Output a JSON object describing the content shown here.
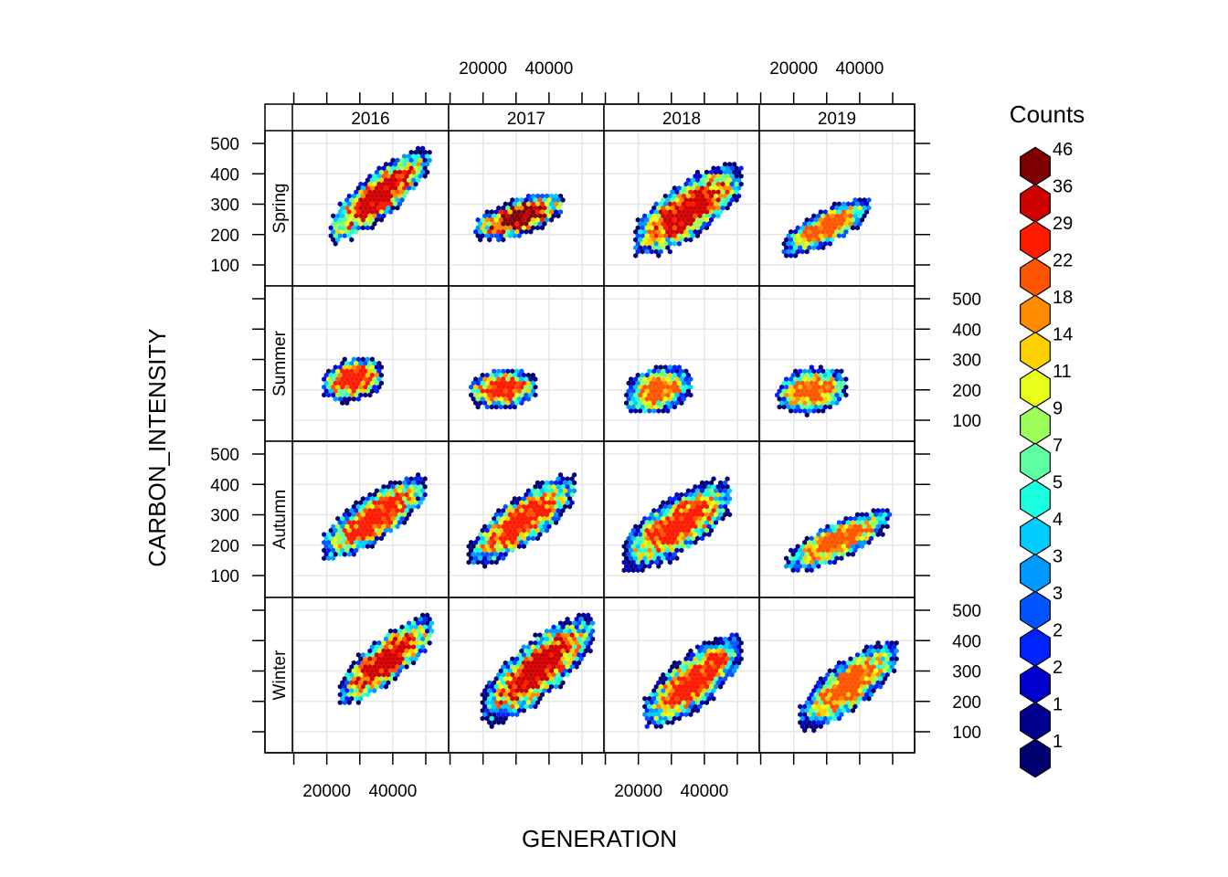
{
  "chart_data": {
    "type": "hexbin",
    "xlabel": "GENERATION",
    "ylabel": "CARBON_INTENSITY",
    "columns": [
      "2016",
      "2017",
      "2018",
      "2019"
    ],
    "rows": [
      "Spring",
      "Summer",
      "Autumn",
      "Winter"
    ],
    "xlim": [
      14000,
      56000
    ],
    "ylim": [
      20,
      520
    ],
    "x_ticks": [
      20000,
      40000
    ],
    "y_ticks": [
      100,
      200,
      300,
      400,
      500
    ],
    "legend": {
      "title": "Counts",
      "position": "right",
      "labels": [
        "46",
        "36",
        "29",
        "22",
        "18",
        "14",
        "11",
        "9",
        "7",
        "5",
        "4",
        "3",
        "3",
        "2",
        "2",
        "1",
        "1"
      ],
      "colors": [
        "#7F0000",
        "#CF0000",
        "#FF1A00",
        "#FF5500",
        "#FF8C00",
        "#FFD000",
        "#E8FF1A",
        "#9CFF5A",
        "#5EFFA0",
        "#1AFFE0",
        "#00CCFF",
        "#0099FF",
        "#0055FF",
        "#0022FF",
        "#0000CC",
        "#00008F",
        "#000070"
      ]
    },
    "panels": [
      {
        "column": "2016",
        "row": "Spring",
        "gen_range": [
          21000,
          51000
        ],
        "ci_at_min": 210,
        "ci_at_max": 450,
        "ci_spread": 85,
        "peak_count": 36,
        "max_ci": 480
      },
      {
        "column": "2017",
        "row": "Spring",
        "gen_range": [
          18000,
          44000
        ],
        "ci_at_min": 215,
        "ci_at_max": 300,
        "ci_spread": 60,
        "peak_count": 46,
        "max_ci": 350
      },
      {
        "column": "2018",
        "row": "Spring",
        "gen_range": [
          19000,
          51000
        ],
        "ci_at_min": 180,
        "ci_at_max": 380,
        "ci_spread": 100,
        "peak_count": 36,
        "max_ci": 440
      },
      {
        "column": "2019",
        "row": "Spring",
        "gen_range": [
          17000,
          43000
        ],
        "ci_at_min": 160,
        "ci_at_max": 290,
        "ci_spread": 60,
        "peak_count": 22,
        "max_ci": 330
      },
      {
        "column": "2016",
        "row": "Summer",
        "gen_range": [
          19000,
          37000
        ],
        "ci_at_min": 220,
        "ci_at_max": 250,
        "ci_spread": 70,
        "peak_count": 29,
        "max_ci": 370
      },
      {
        "column": "2017",
        "row": "Summer",
        "gen_range": [
          16000,
          36000
        ],
        "ci_at_min": 195,
        "ci_at_max": 210,
        "ci_spread": 65,
        "peak_count": 29,
        "max_ci": 320
      },
      {
        "column": "2018",
        "row": "Summer",
        "gen_range": [
          16000,
          36000
        ],
        "ci_at_min": 180,
        "ci_at_max": 220,
        "ci_spread": 75,
        "peak_count": 22,
        "max_ci": 320
      },
      {
        "column": "2019",
        "row": "Summer",
        "gen_range": [
          15000,
          36000
        ],
        "ci_at_min": 185,
        "ci_at_max": 210,
        "ci_spread": 75,
        "peak_count": 22,
        "max_ci": 320
      },
      {
        "column": "2016",
        "row": "Autumn",
        "gen_range": [
          19000,
          50000
        ],
        "ci_at_min": 190,
        "ci_at_max": 390,
        "ci_spread": 85,
        "peak_count": 29,
        "max_ci": 440
      },
      {
        "column": "2017",
        "row": "Autumn",
        "gen_range": [
          16000,
          48000
        ],
        "ci_at_min": 170,
        "ci_at_max": 390,
        "ci_spread": 90,
        "peak_count": 29,
        "max_ci": 430
      },
      {
        "column": "2018",
        "row": "Autumn",
        "gen_range": [
          16000,
          48000
        ],
        "ci_at_min": 170,
        "ci_at_max": 360,
        "ci_spread": 100,
        "peak_count": 29,
        "max_ci": 430
      },
      {
        "column": "2019",
        "row": "Autumn",
        "gen_range": [
          18000,
          49000
        ],
        "ci_at_min": 140,
        "ci_at_max": 290,
        "ci_spread": 65,
        "peak_count": 22,
        "max_ci": 350
      },
      {
        "column": "2016",
        "row": "Winter",
        "gen_range": [
          24000,
          52000
        ],
        "ci_at_min": 230,
        "ci_at_max": 440,
        "ci_spread": 85,
        "peak_count": 36,
        "max_ci": 510
      },
      {
        "column": "2017",
        "row": "Winter",
        "gen_range": [
          20000,
          53000
        ],
        "ci_at_min": 180,
        "ci_at_max": 430,
        "ci_spread": 110,
        "peak_count": 36,
        "max_ci": 500
      },
      {
        "column": "2018",
        "row": "Winter",
        "gen_range": [
          22000,
          51000
        ],
        "ci_at_min": 160,
        "ci_at_max": 370,
        "ci_spread": 100,
        "peak_count": 29,
        "max_ci": 440
      },
      {
        "column": "2019",
        "row": "Winter",
        "gen_range": [
          22000,
          51000
        ],
        "ci_at_min": 150,
        "ci_at_max": 350,
        "ci_spread": 90,
        "peak_count": 22,
        "max_ci": 410
      }
    ]
  }
}
